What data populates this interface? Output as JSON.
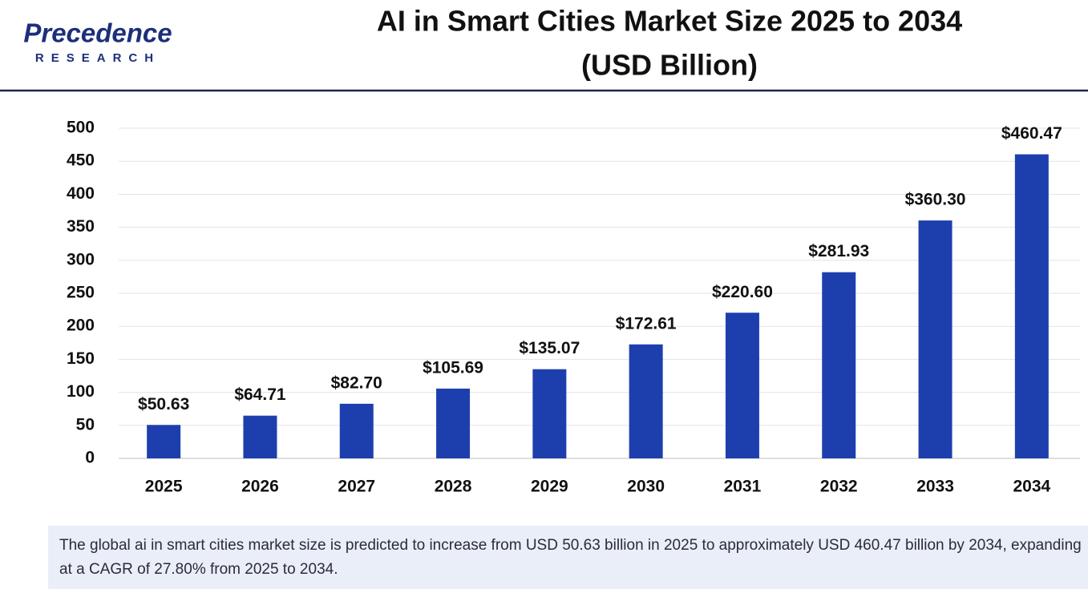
{
  "logo": {
    "name": "Precedence",
    "tagline": "RESEARCH"
  },
  "chart_data": {
    "type": "bar",
    "title": "AI in Smart Cities Market Size 2025 to 2034",
    "subtitle": "(USD Billion)",
    "categories": [
      "2025",
      "2026",
      "2027",
      "2028",
      "2029",
      "2030",
      "2031",
      "2032",
      "2033",
      "2034"
    ],
    "values": [
      50.63,
      64.71,
      82.7,
      105.69,
      135.07,
      172.61,
      220.6,
      281.93,
      360.3,
      460.47
    ],
    "value_labels": [
      "$50.63",
      "$64.71",
      "$82.70",
      "$105.69",
      "$135.07",
      "$172.61",
      "$220.60",
      "$281.93",
      "$360.30",
      "$460.47"
    ],
    "color": "#1d3fae",
    "ylim": [
      0,
      500
    ],
    "yticks": [
      0,
      50,
      100,
      150,
      200,
      250,
      300,
      350,
      400,
      450,
      500
    ],
    "grid": true
  },
  "footnote": "The global ai in smart cities market size is predicted to increase from USD 50.63 billion in 2025 to approximately USD 460.47 billion by 2034, expanding at a CAGR of 27.80% from 2025 to 2034."
}
